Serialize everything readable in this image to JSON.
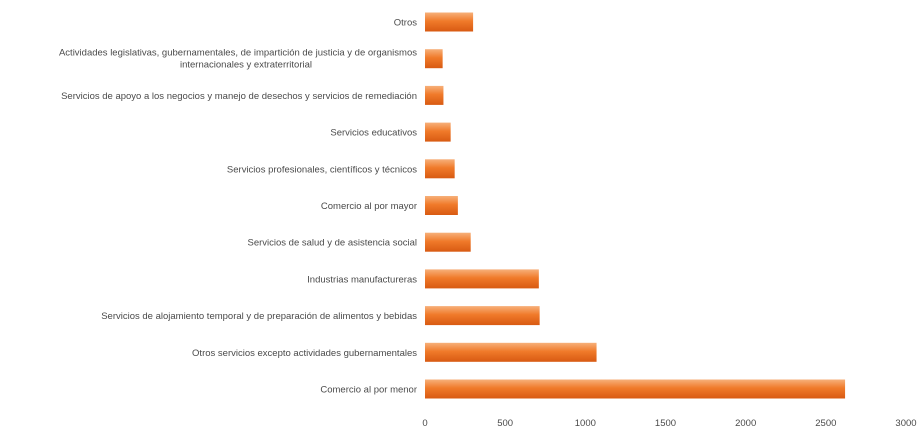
{
  "chart_data": {
    "type": "bar",
    "orientation": "horizontal",
    "title": "",
    "xlabel": "",
    "ylabel": "",
    "xlim": [
      0,
      3000
    ],
    "xticks": [
      0,
      500,
      1000,
      1500,
      2000,
      2500,
      3000
    ],
    "grid": false,
    "legend": "none",
    "categories": [
      "Comercio al por menor",
      "Otros servicios excepto actividades gubernamentales",
      "Servicios de alojamiento temporal y de preparación de alimentos y bebidas",
      "Industrias manufactureras",
      "Servicios de salud y de asistencia social",
      "Comercio al por mayor",
      "Servicios profesionales, científicos y técnicos",
      "Servicios educativos",
      "Servicios de apoyo a los negocios y manejo de desechos y servicios de remediación",
      "Actividades legislativas, gubernamentales, de impartición de justicia y de organismos internacionales y extraterritorial",
      "Otros"
    ],
    "values": [
      2620,
      1070,
      715,
      710,
      285,
      205,
      185,
      160,
      115,
      110,
      300
    ],
    "bar_color": "#f07a2a"
  }
}
